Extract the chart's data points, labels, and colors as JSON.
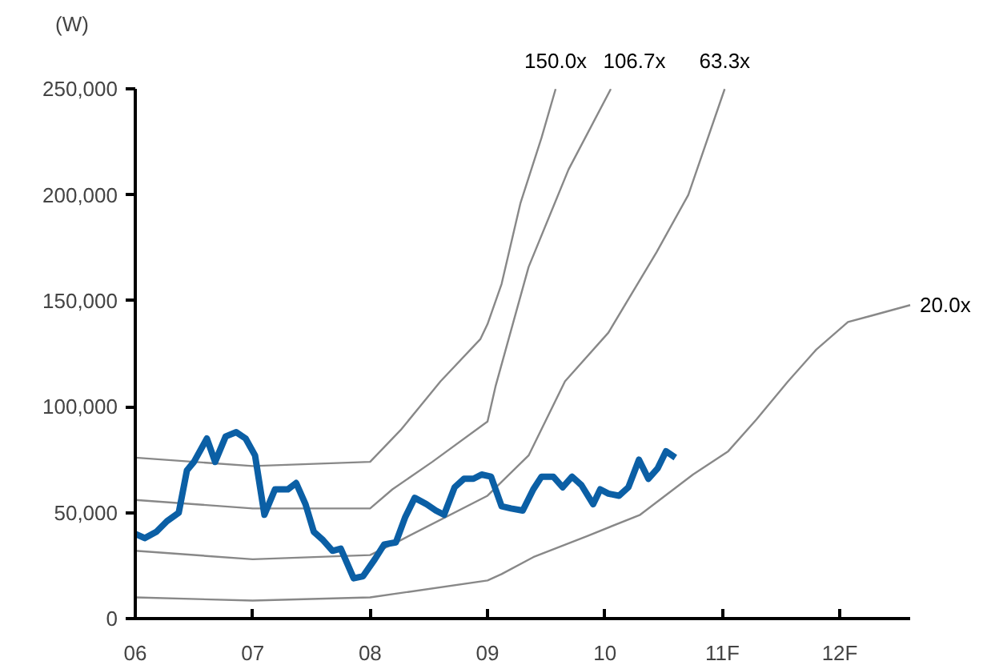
{
  "chart_data": {
    "type": "line",
    "ylabel": "(W)",
    "xlim": [
      6,
      12.6
    ],
    "ylim": [
      0,
      250000
    ],
    "xticks": [
      {
        "value": 6,
        "label": "06"
      },
      {
        "value": 7,
        "label": "07"
      },
      {
        "value": 8,
        "label": "08"
      },
      {
        "value": 9,
        "label": "09"
      },
      {
        "value": 10,
        "label": "10"
      },
      {
        "value": 11,
        "label": "11F"
      },
      {
        "value": 12,
        "label": "12F"
      }
    ],
    "yticks": [
      {
        "value": 0,
        "label": "0"
      },
      {
        "value": 50000,
        "label": "50,000"
      },
      {
        "value": 100000,
        "label": "100,000"
      },
      {
        "value": 150000,
        "label": "150,000"
      },
      {
        "value": 200000,
        "label": "200,000"
      },
      {
        "value": 250000,
        "label": "250,000"
      }
    ],
    "grid": false,
    "marker": "none",
    "line_style": "solid",
    "series": [
      {
        "name": "150.0x",
        "color": "#888888",
        "x": [
          6.0,
          7.0,
          8.0,
          8.26,
          8.6,
          8.94,
          9.0,
          9.12,
          9.28,
          9.46,
          9.58
        ],
        "values": [
          76000,
          72000,
          74000,
          89000,
          112000,
          132000,
          139000,
          158000,
          196000,
          227000,
          250000
        ]
      },
      {
        "name": "106.7x",
        "color": "#888888",
        "x": [
          6.0,
          7.0,
          8.0,
          8.19,
          8.53,
          9.0,
          9.07,
          9.35,
          9.69,
          10.05
        ],
        "values": [
          56000,
          52000,
          52000,
          61000,
          74000,
          93000,
          110000,
          166000,
          212000,
          250000
        ]
      },
      {
        "name": "63.3x",
        "color": "#888888",
        "x": [
          6.0,
          7.0,
          8.0,
          8.26,
          9.0,
          9.35,
          9.66,
          10.03,
          10.44,
          10.71,
          11.02
        ],
        "values": [
          32000,
          28000,
          30000,
          37000,
          58000,
          77000,
          112000,
          135000,
          173000,
          200000,
          250000
        ]
      },
      {
        "name": "20.0x",
        "color": "#888888",
        "x": [
          6.0,
          7.0,
          8.0,
          9.0,
          9.12,
          9.39,
          9.85,
          10.3,
          10.75,
          11.05,
          11.29,
          11.56,
          11.8,
          12.07,
          12.27,
          12.6
        ],
        "values": [
          10000,
          8500,
          10000,
          18000,
          21000,
          29000,
          39000,
          49000,
          68000,
          79000,
          94000,
          112000,
          127000,
          140000,
          143000,
          148000
        ]
      },
      {
        "color": "#0b5fa5",
        "x": [
          6.0,
          6.08,
          6.18,
          6.27,
          6.37,
          6.44,
          6.5,
          6.61,
          6.68,
          6.77,
          6.86,
          6.94,
          7.02,
          7.1,
          7.19,
          7.3,
          7.37,
          7.45,
          7.52,
          7.6,
          7.68,
          7.75,
          7.86,
          7.94,
          8.04,
          8.12,
          8.22,
          8.3,
          8.38,
          8.48,
          8.56,
          8.63,
          8.72,
          8.8,
          8.88,
          8.95,
          9.03,
          9.12,
          9.2,
          9.3,
          9.39,
          9.46,
          9.56,
          9.64,
          9.72,
          9.8,
          9.9,
          9.96,
          10.03,
          10.12,
          10.2,
          10.29,
          10.37,
          10.45,
          10.52,
          10.6
        ],
        "values": [
          40000,
          38000,
          41000,
          46000,
          50000,
          70000,
          74000,
          85000,
          74000,
          86000,
          88000,
          85000,
          77000,
          49000,
          61000,
          61000,
          64000,
          54000,
          41000,
          37000,
          32000,
          33000,
          19000,
          20000,
          28000,
          35000,
          36000,
          48000,
          57000,
          54000,
          51000,
          49000,
          62000,
          66000,
          66000,
          68000,
          67000,
          53000,
          52000,
          51000,
          61000,
          67000,
          67000,
          62000,
          67000,
          63000,
          54000,
          61000,
          59000,
          58000,
          62000,
          75000,
          66000,
          71000,
          79000,
          76000
        ]
      }
    ]
  }
}
